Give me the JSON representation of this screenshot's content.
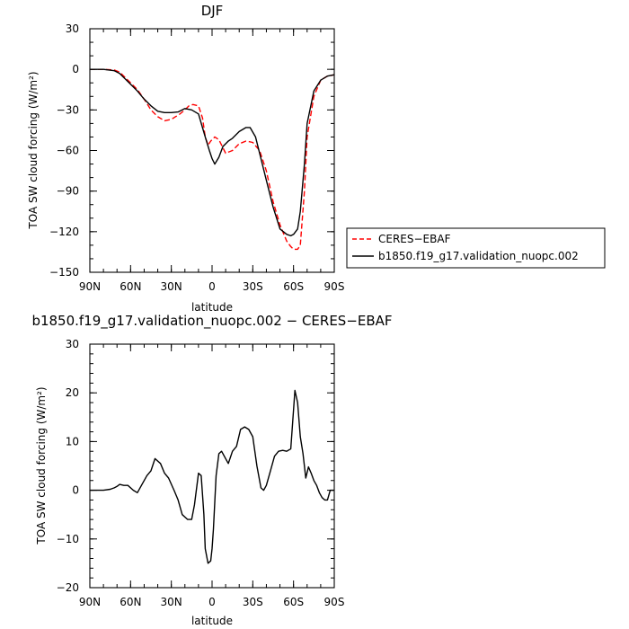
{
  "chart_data": [
    {
      "type": "line",
      "title": "DJF",
      "xlabel": "latitude",
      "ylabel": "TOA SW cloud forcing (W/m²)",
      "xlim": [
        90,
        -90
      ],
      "ylim": [
        -150,
        30
      ],
      "x_ticks": [
        90,
        60,
        30,
        0,
        -30,
        -60,
        -90
      ],
      "x_tick_labels": [
        "90N",
        "60N",
        "30N",
        "0",
        "30S",
        "60S",
        "90S"
      ],
      "y_ticks": [
        30,
        0,
        -30,
        -60,
        -90,
        -120,
        -150
      ],
      "y_tick_labels": [
        "30",
        "0",
        "−30",
        "−60",
        "−90",
        "−120",
        "−150"
      ],
      "legend": "right",
      "series": [
        {
          "name": "CERES−EBAF",
          "color": "#ff0000",
          "dash": "dashed",
          "x": [
            90,
            80,
            72,
            68,
            62,
            55,
            50,
            45,
            40,
            35,
            30,
            27,
            25,
            20,
            17,
            14,
            10,
            7,
            5,
            3,
            1,
            -2,
            -5,
            -10,
            -15,
            -20,
            -25,
            -30,
            -35,
            -40,
            -45,
            -50,
            -55,
            -58,
            -60,
            -63,
            -65,
            -68,
            -70,
            -75,
            -80,
            -85,
            -90
          ],
          "values": [
            0,
            0,
            -0.5,
            -2,
            -8,
            -15,
            -22,
            -30,
            -35,
            -38,
            -37,
            -35,
            -34,
            -30,
            -27,
            -26,
            -27,
            -36,
            -50,
            -56,
            -53,
            -50,
            -52,
            -62,
            -60,
            -55,
            -53,
            -54,
            -60,
            -75,
            -98,
            -115,
            -127,
            -131,
            -133,
            -133,
            -130,
            -90,
            -50,
            -20,
            -8,
            -5,
            -4
          ]
        },
        {
          "name": "b1850.f19_g17.validation_nuopc.002",
          "color": "#000000",
          "dash": "solid",
          "x": [
            90,
            80,
            72,
            68,
            62,
            55,
            50,
            45,
            40,
            35,
            30,
            25,
            20,
            15,
            10,
            5,
            2,
            0,
            -2,
            -5,
            -8,
            -12,
            -15,
            -20,
            -25,
            -28,
            -32,
            -35,
            -40,
            -45,
            -50,
            -55,
            -58,
            -60,
            -63,
            -65,
            -68,
            -70,
            -75,
            -80,
            -85,
            -90
          ],
          "values": [
            0,
            0,
            -1,
            -3,
            -9,
            -16,
            -22,
            -27,
            -31,
            -32,
            -32,
            -31.5,
            -29,
            -30,
            -33,
            -50,
            -60,
            -66,
            -70,
            -65,
            -57,
            -53,
            -51,
            -46,
            -43,
            -43,
            -50,
            -62,
            -82,
            -102,
            -118,
            -122,
            -123,
            -122,
            -118,
            -105,
            -70,
            -40,
            -16,
            -8,
            -5,
            -4
          ]
        }
      ]
    },
    {
      "type": "line",
      "title": "b1850.f19_g17.validation_nuopc.002 − CERES−EBAF",
      "xlabel": "latitude",
      "ylabel": "TOA SW cloud forcing (W/m²)",
      "xlim": [
        90,
        -90
      ],
      "ylim": [
        -20,
        30
      ],
      "x_ticks": [
        90,
        60,
        30,
        0,
        -30,
        -60,
        -90
      ],
      "x_tick_labels": [
        "90N",
        "60N",
        "30N",
        "0",
        "30S",
        "60S",
        "90S"
      ],
      "y_ticks": [
        30,
        20,
        10,
        0,
        -10,
        -20
      ],
      "y_tick_labels": [
        "30",
        "20",
        "10",
        "0",
        "−10",
        "−20"
      ],
      "series": [
        {
          "color": "#000000",
          "dash": "solid",
          "x": [
            90,
            85,
            80,
            75,
            72,
            70,
            68,
            65,
            62,
            58,
            55,
            52,
            48,
            45,
            42,
            38,
            35,
            32,
            28,
            25,
            22,
            18,
            15,
            13,
            10,
            8,
            6,
            5,
            3,
            1,
            0,
            -1,
            -3,
            -5,
            -7,
            -10,
            -12,
            -15,
            -18,
            -21,
            -24,
            -27,
            -30,
            -33,
            -36,
            -38,
            -40,
            -43,
            -46,
            -49,
            -52,
            -55,
            -58,
            -61,
            -63,
            -65,
            -67,
            -69,
            -71,
            -73,
            -75,
            -77,
            -79,
            -81,
            -83,
            -85,
            -87,
            -88,
            -90
          ],
          "values": [
            0,
            0,
            0,
            0.2,
            0.5,
            0.8,
            1.2,
            1,
            1,
            0,
            -0.5,
            1,
            3,
            4,
            6.5,
            5.5,
            3.5,
            2.5,
            0,
            -2,
            -5,
            -6,
            -6,
            -3,
            3.5,
            3,
            -5,
            -12,
            -15,
            -14.5,
            -12,
            -8,
            3,
            7.5,
            8,
            6.5,
            5.5,
            8,
            9,
            12.5,
            13,
            12.5,
            11,
            5,
            0.5,
            0,
            1,
            4,
            7,
            8,
            8.2,
            8,
            8.5,
            20.5,
            18,
            11,
            7.5,
            2.5,
            4.8,
            3.5,
            2,
            1,
            -0.5,
            -1.5,
            -2,
            -2,
            0,
            0,
            0
          ]
        }
      ]
    }
  ]
}
